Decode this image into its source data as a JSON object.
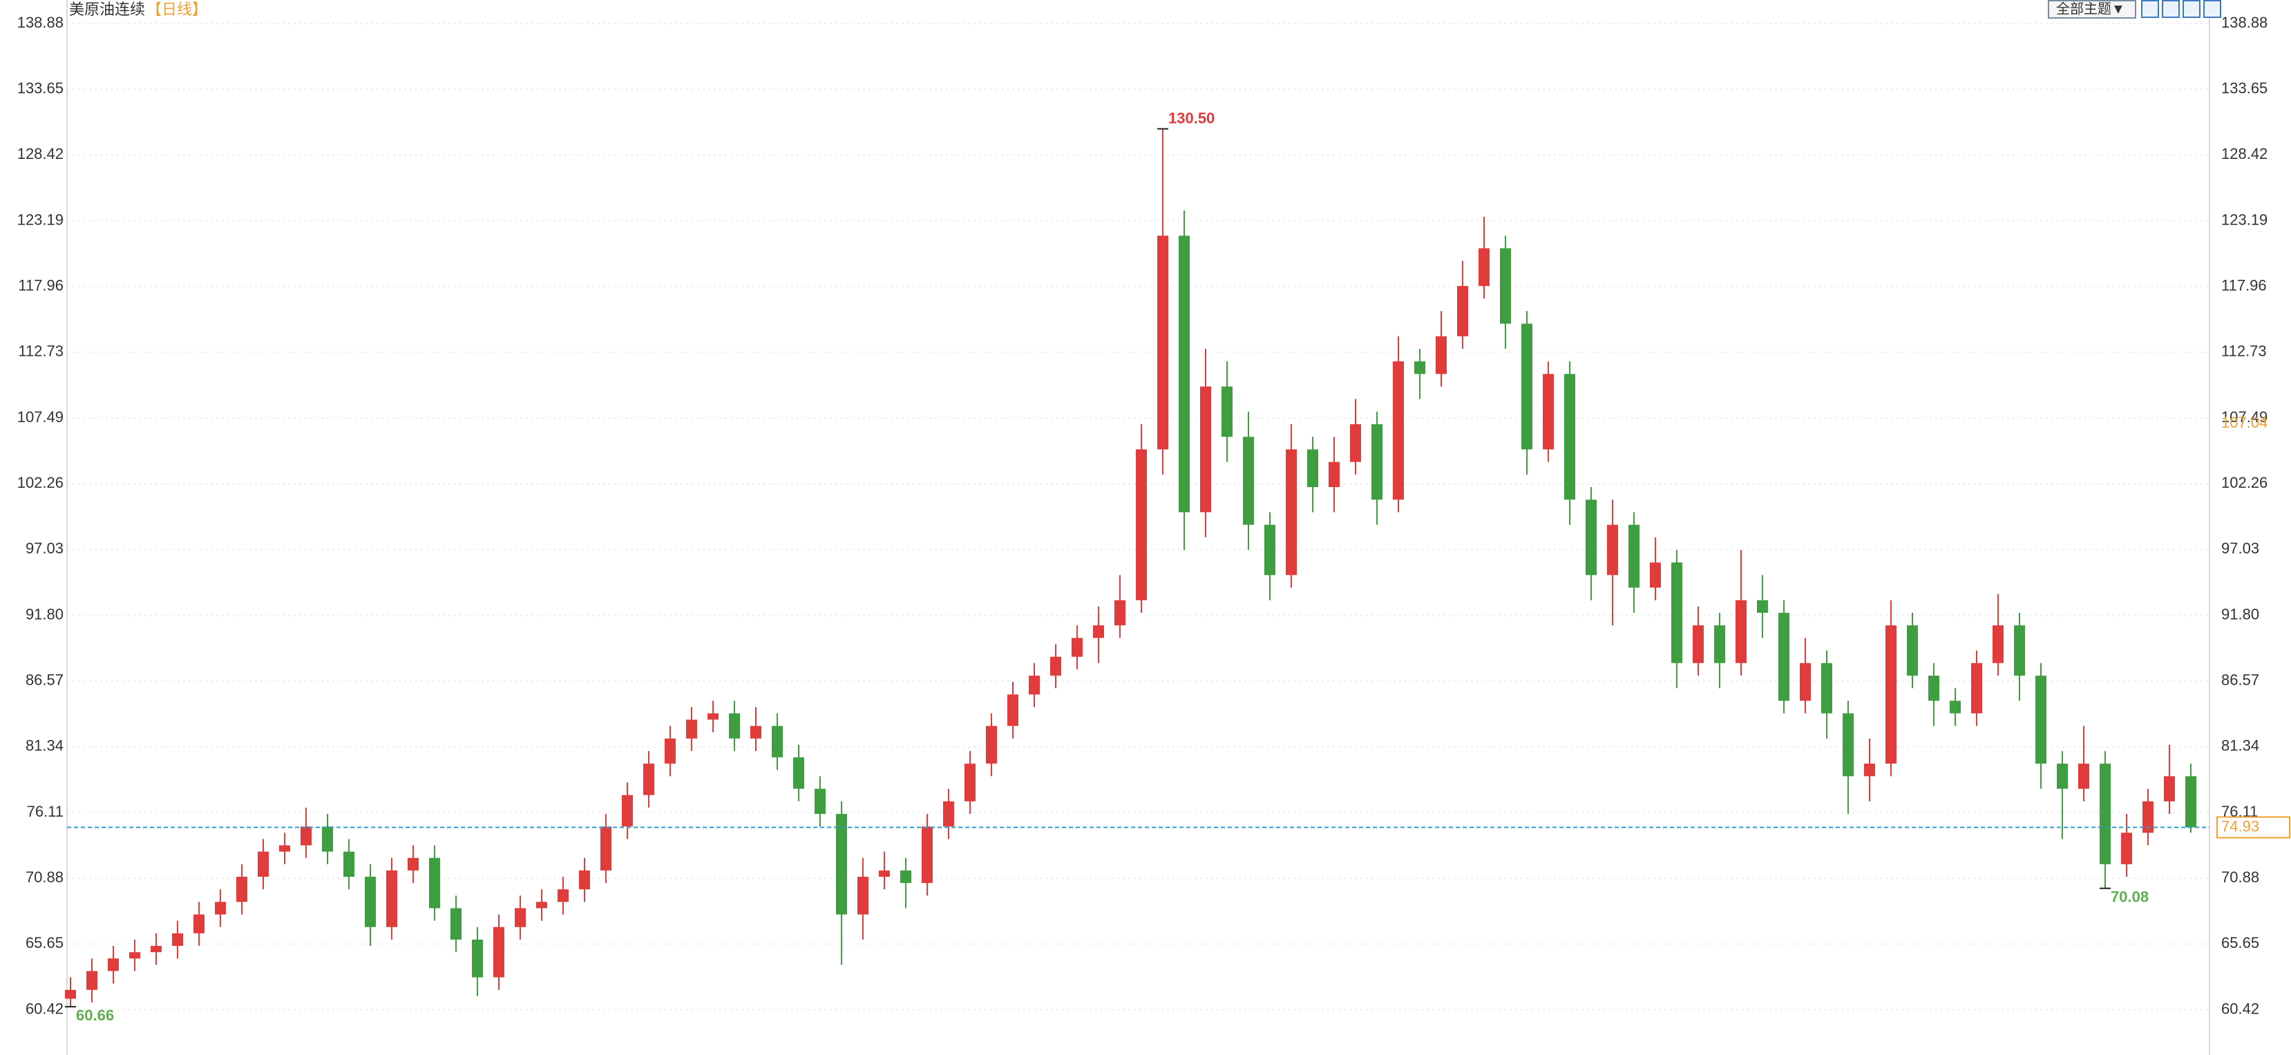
{
  "chart_data": {
    "type": "candlestick",
    "title": "美原油连续",
    "period": "【日线】",
    "theme_button": "全部主题▼",
    "up_color": "#e03c3c",
    "down_color": "#3f9e3f",
    "ylim": [
      56.82,
      140.75
    ],
    "yticks": [
      60.42,
      65.65,
      70.88,
      76.11,
      81.34,
      86.57,
      {
        "value": 91.8,
        "label": "91.80"
      },
      97.03,
      102.26,
      107.49,
      112.73,
      117.96,
      123.19,
      128.42,
      133.65,
      138.88
    ],
    "grid": true,
    "last_price": 74.93,
    "last_price_color": "#f0a030",
    "last_line_color": "#2a9fd6",
    "right_marker": 107.04,
    "annotations": [
      {
        "value": 130.5,
        "label": "130.50",
        "color": "#e03c3c",
        "side": "high"
      },
      {
        "value": 60.66,
        "label": "60.66",
        "color": "#5fae4f",
        "side": "low"
      },
      {
        "value": 70.08,
        "label": "70.08",
        "color": "#5fae4f",
        "side": "low"
      }
    ],
    "ohlc": [
      [
        61.3,
        63,
        60.66,
        62
      ],
      [
        62,
        64.5,
        61,
        63.5
      ],
      [
        63.5,
        65.5,
        62.5,
        64.5
      ],
      [
        64.5,
        66,
        63.5,
        65
      ],
      [
        65,
        66.5,
        64,
        65.5
      ],
      [
        65.5,
        67.5,
        64.5,
        66.5
      ],
      [
        66.5,
        69,
        65.5,
        68
      ],
      [
        68,
        70,
        67,
        69
      ],
      [
        69,
        72,
        68,
        71
      ],
      [
        71,
        74,
        70,
        73
      ],
      [
        73,
        74.5,
        72,
        73.5
      ],
      [
        73.5,
        76.5,
        72.5,
        75
      ],
      [
        75,
        76,
        72,
        73
      ],
      [
        73,
        74,
        70,
        71
      ],
      [
        71,
        72,
        65.5,
        67
      ],
      [
        67,
        72.5,
        66,
        71.5
      ],
      [
        71.5,
        73.5,
        70.5,
        72.5
      ],
      [
        72.5,
        73.5,
        67.5,
        68.5
      ],
      [
        68.5,
        69.5,
        65,
        66
      ],
      [
        66,
        67,
        61.5,
        63
      ],
      [
        63,
        68,
        62,
        67
      ],
      [
        67,
        69.5,
        66,
        68.5
      ],
      [
        68.5,
        70,
        67.5,
        69
      ],
      [
        69,
        71,
        68,
        70
      ],
      [
        70,
        72.5,
        69,
        71.5
      ],
      [
        71.5,
        76,
        70.5,
        75
      ],
      [
        75,
        78.5,
        74,
        77.5
      ],
      [
        77.5,
        81,
        76.5,
        80
      ],
      [
        80,
        83,
        79,
        82
      ],
      [
        82,
        84.5,
        81,
        83.5
      ],
      [
        83.5,
        85,
        82.5,
        84
      ],
      [
        84,
        85,
        81,
        82
      ],
      [
        82,
        84.5,
        81,
        83
      ],
      [
        83,
        84,
        79.5,
        80.5
      ],
      [
        80.5,
        81.5,
        77,
        78
      ],
      [
        78,
        79,
        75,
        76
      ],
      [
        76,
        77,
        64,
        68
      ],
      [
        68,
        72.5,
        66,
        71
      ],
      [
        71,
        73,
        70,
        71.5
      ],
      [
        71.5,
        72.5,
        68.5,
        70.5
      ],
      [
        70.5,
        76,
        69.5,
        75
      ],
      [
        75,
        78,
        74,
        77
      ],
      [
        77,
        81,
        76,
        80
      ],
      [
        80,
        84,
        79,
        83
      ],
      [
        83,
        86.5,
        82,
        85.5
      ],
      [
        85.5,
        88,
        84.5,
        87
      ],
      [
        87,
        89.5,
        86,
        88.5
      ],
      [
        88.5,
        91,
        87.5,
        90
      ],
      [
        90,
        92.5,
        88,
        91
      ],
      [
        91,
        95,
        90,
        93
      ],
      [
        93,
        107,
        92,
        105
      ],
      [
        105,
        130.5,
        103,
        122
      ],
      [
        122,
        124,
        97,
        100
      ],
      [
        100,
        113,
        98,
        110
      ],
      [
        110,
        112,
        104,
        106
      ],
      [
        106,
        108,
        97,
        99
      ],
      [
        99,
        100,
        93,
        95
      ],
      [
        95,
        107,
        94,
        105
      ],
      [
        105,
        106,
        100,
        102
      ],
      [
        102,
        106,
        100,
        104
      ],
      [
        104,
        109,
        103,
        107
      ],
      [
        107,
        108,
        99,
        101
      ],
      [
        101,
        114,
        100,
        112
      ],
      [
        112,
        113,
        109,
        111
      ],
      [
        111,
        116,
        110,
        114
      ],
      [
        114,
        120,
        113,
        118
      ],
      [
        118,
        123.5,
        117,
        121
      ],
      [
        121,
        122,
        113,
        115
      ],
      [
        115,
        116,
        103,
        105
      ],
      [
        105,
        112,
        104,
        111
      ],
      [
        111,
        112,
        99,
        101
      ],
      [
        101,
        102,
        93,
        95
      ],
      [
        95,
        101,
        91,
        99
      ],
      [
        99,
        100,
        92,
        94
      ],
      [
        94,
        98,
        93,
        96
      ],
      [
        96,
        97,
        86,
        88
      ],
      [
        88,
        92.5,
        87,
        91
      ],
      [
        91,
        92,
        86,
        88
      ],
      [
        88,
        97,
        87,
        93
      ],
      [
        93,
        95,
        90,
        92
      ],
      [
        92,
        93,
        84,
        85
      ],
      [
        85,
        90,
        84,
        88
      ],
      [
        88,
        89,
        82,
        84
      ],
      [
        84,
        85,
        76,
        79
      ],
      [
        79,
        82,
        77,
        80
      ],
      [
        80,
        93,
        79,
        91
      ],
      [
        91,
        92,
        86,
        87
      ],
      [
        87,
        88,
        83,
        85
      ],
      [
        85,
        86,
        83,
        84
      ],
      [
        84,
        89,
        83,
        88
      ],
      [
        88,
        93.5,
        87,
        91
      ],
      [
        91,
        92,
        85,
        87
      ],
      [
        87,
        88,
        78,
        80
      ],
      [
        80,
        81,
        74,
        78
      ],
      [
        78,
        83,
        77,
        80
      ],
      [
        80,
        81,
        70.08,
        72
      ],
      [
        72,
        76,
        71,
        74.5
      ],
      [
        74.5,
        78,
        73.5,
        77
      ],
      [
        77,
        81.5,
        76,
        79
      ],
      [
        79,
        80,
        74.5,
        74.93
      ]
    ]
  }
}
